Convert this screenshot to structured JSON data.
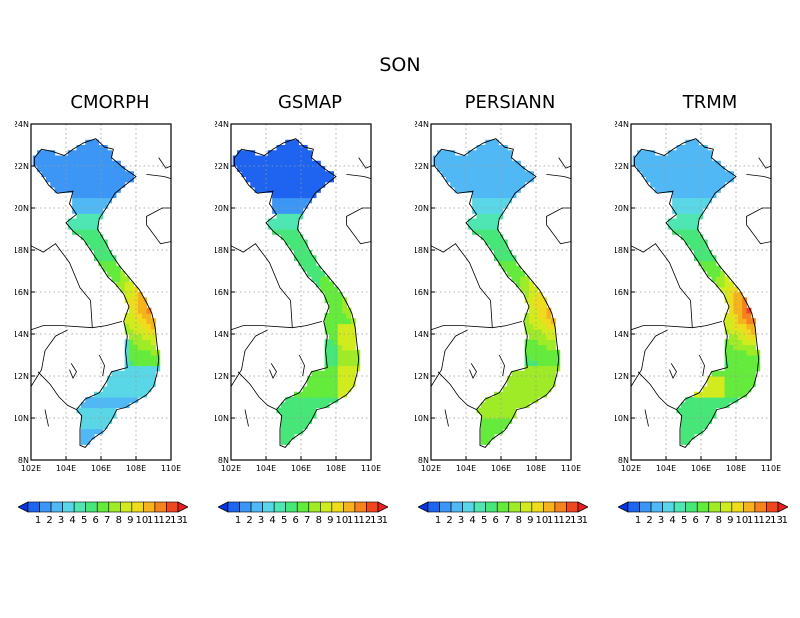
{
  "figure": {
    "title": "SON",
    "lat_ticks": [
      "24N",
      "22N",
      "20N",
      "18N",
      "16N",
      "14N",
      "12N",
      "10N",
      "8N"
    ],
    "lon_ticks": [
      "102E",
      "104E",
      "106E",
      "108E",
      "110E"
    ],
    "colorbar_levels": [
      "1",
      "2",
      "3",
      "4",
      "5",
      "6",
      "7",
      "8",
      "9",
      "10",
      "11",
      "12",
      "13",
      "14"
    ],
    "colorbar_colors": [
      "#0a32e6",
      "#1e64f0",
      "#3c96f5",
      "#50b9f5",
      "#5ad7e6",
      "#50e6b4",
      "#46e678",
      "#64eb3c",
      "#a0eb28",
      "#d2eb1e",
      "#f0dc1e",
      "#f5b41e",
      "#f5821e",
      "#f0461e",
      "#e61e1e"
    ],
    "panels": [
      {
        "title": "CMORPH",
        "wet_center": "16N-14N coast",
        "north": 2.0,
        "central": 12.5,
        "south_coast": 3.5
      },
      {
        "title": "GSMAP",
        "wet_center": "central highlands",
        "north": 1.0,
        "central": 8.0,
        "south_coast": 6.0
      },
      {
        "title": "PERSIANN",
        "wet_center": "15N coast",
        "north": 3.0,
        "central": 11.5,
        "south_coast": 7.0
      },
      {
        "title": "TRMM",
        "wet_center": "16N-14N coast",
        "north": 3.0,
        "central": 13.5,
        "south_coast": 6.5
      }
    ]
  },
  "chart_data": {
    "type": "heatmap",
    "title": "SON",
    "panels": [
      "CMORPH",
      "GSMAP",
      "PERSIANN",
      "TRMM"
    ],
    "xlim": [
      102,
      110
    ],
    "ylim": [
      8,
      24
    ],
    "colorbar": {
      "min": 1,
      "max": 14,
      "extend": "both"
    }
  }
}
